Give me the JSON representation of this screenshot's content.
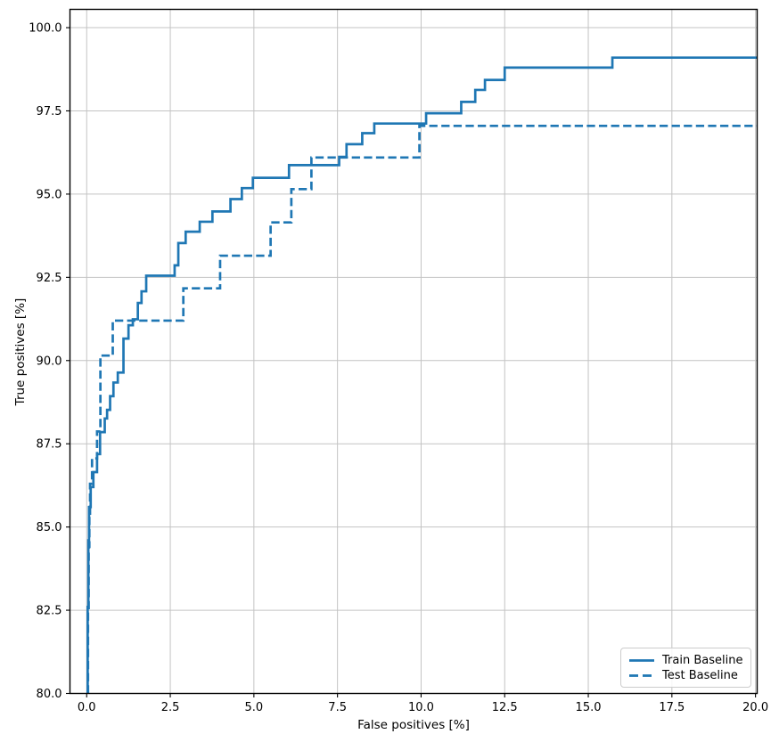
{
  "figure": {
    "background": "#ffffff",
    "line_color": "#1f77b4",
    "grid_color": "#c3c3c3",
    "spine_color": "#000000",
    "text_color": "#000000"
  },
  "chart_data": {
    "type": "line",
    "subtype": "roc-step-curve",
    "title": "",
    "xlabel": "False positives [%]",
    "ylabel": "True positives [%]",
    "xlim": [
      -0.5,
      20.05
    ],
    "ylim": [
      80,
      100.55
    ],
    "grid": true,
    "legend_position": "lower right",
    "x_tick_values": [
      0,
      2.5,
      5,
      7.5,
      10,
      12.5,
      15,
      17.5,
      20
    ],
    "x_tick_labels": [
      "0.0",
      "2.5",
      "5.0",
      "7.5",
      "10.0",
      "12.5",
      "15.0",
      "17.5",
      "20.0"
    ],
    "y_tick_values": [
      80,
      82.5,
      85,
      87.5,
      90,
      92.5,
      95,
      97.5,
      100
    ],
    "y_tick_labels": [
      "80.0",
      "82.5",
      "85.0",
      "87.5",
      "90.0",
      "92.5",
      "95.0",
      "97.5",
      "100.0"
    ],
    "series": [
      {
        "name": "Train Baseline",
        "style": "solid",
        "color": "#1f77b4",
        "linewidth": 2.7,
        "drawstyle": "steps",
        "points": [
          [
            0.03,
            80
          ],
          [
            0.03,
            82.6
          ],
          [
            0.05,
            82.6
          ],
          [
            0.05,
            84.6
          ],
          [
            0.07,
            84.6
          ],
          [
            0.07,
            85.6
          ],
          [
            0.12,
            85.6
          ],
          [
            0.12,
            86.2
          ],
          [
            0.2,
            86.2
          ],
          [
            0.2,
            86.65
          ],
          [
            0.31,
            86.65
          ],
          [
            0.31,
            87.19
          ],
          [
            0.4,
            87.19
          ],
          [
            0.4,
            87.85
          ],
          [
            0.54,
            87.85
          ],
          [
            0.54,
            88.26
          ],
          [
            0.61,
            88.26
          ],
          [
            0.61,
            88.52
          ],
          [
            0.7,
            88.52
          ],
          [
            0.7,
            88.93
          ],
          [
            0.8,
            88.93
          ],
          [
            0.8,
            89.34
          ],
          [
            0.93,
            89.34
          ],
          [
            0.93,
            89.64
          ],
          [
            1.1,
            89.64
          ],
          [
            1.1,
            90.66
          ],
          [
            1.25,
            90.66
          ],
          [
            1.25,
            91.06
          ],
          [
            1.38,
            91.06
          ],
          [
            1.38,
            91.24
          ],
          [
            1.53,
            91.24
          ],
          [
            1.53,
            91.73
          ],
          [
            1.64,
            91.73
          ],
          [
            1.64,
            92.08
          ],
          [
            1.78,
            92.08
          ],
          [
            1.78,
            92.55
          ],
          [
            2.63,
            92.55
          ],
          [
            2.63,
            92.86
          ],
          [
            2.74,
            92.86
          ],
          [
            2.74,
            93.53
          ],
          [
            2.96,
            93.53
          ],
          [
            2.96,
            93.87
          ],
          [
            3.38,
            93.87
          ],
          [
            3.38,
            94.17
          ],
          [
            3.76,
            94.17
          ],
          [
            3.76,
            94.48
          ],
          [
            4.3,
            94.48
          ],
          [
            4.3,
            94.85
          ],
          [
            4.64,
            94.85
          ],
          [
            4.64,
            95.18
          ],
          [
            4.97,
            95.18
          ],
          [
            4.97,
            95.49
          ],
          [
            6.05,
            95.49
          ],
          [
            6.05,
            95.87
          ],
          [
            7.55,
            95.87
          ],
          [
            7.55,
            96.12
          ],
          [
            7.77,
            96.12
          ],
          [
            7.77,
            96.5
          ],
          [
            8.24,
            96.5
          ],
          [
            8.24,
            96.83
          ],
          [
            8.6,
            96.83
          ],
          [
            8.6,
            97.12
          ],
          [
            10.15,
            97.12
          ],
          [
            10.15,
            97.43
          ],
          [
            11.2,
            97.43
          ],
          [
            11.2,
            97.77
          ],
          [
            11.62,
            97.77
          ],
          [
            11.62,
            98.13
          ],
          [
            11.91,
            98.13
          ],
          [
            11.91,
            98.43
          ],
          [
            12.5,
            98.43
          ],
          [
            12.5,
            98.8
          ],
          [
            15.72,
            98.8
          ],
          [
            15.72,
            99.1
          ],
          [
            20.05,
            99.1
          ]
        ]
      },
      {
        "name": "Test Baseline",
        "style": "dashed",
        "color": "#1f77b4",
        "linewidth": 2.7,
        "drawstyle": "steps",
        "points": [
          [
            0.04,
            80
          ],
          [
            0.04,
            82.5
          ],
          [
            0.06,
            82.5
          ],
          [
            0.06,
            84.4
          ],
          [
            0.08,
            84.4
          ],
          [
            0.08,
            85.4
          ],
          [
            0.1,
            85.4
          ],
          [
            0.1,
            86.3
          ],
          [
            0.16,
            86.3
          ],
          [
            0.16,
            87.06
          ],
          [
            0.31,
            87.06
          ],
          [
            0.31,
            87.87
          ],
          [
            0.41,
            87.87
          ],
          [
            0.41,
            90.15
          ],
          [
            0.78,
            90.15
          ],
          [
            0.78,
            91.2
          ],
          [
            2.89,
            91.2
          ],
          [
            2.89,
            92.17
          ],
          [
            3.99,
            92.17
          ],
          [
            3.99,
            93.15
          ],
          [
            5.5,
            93.15
          ],
          [
            5.5,
            94.15
          ],
          [
            6.12,
            94.15
          ],
          [
            6.12,
            95.15
          ],
          [
            6.72,
            95.15
          ],
          [
            6.72,
            96.1
          ],
          [
            9.95,
            96.1
          ],
          [
            9.95,
            97.05
          ],
          [
            20.05,
            97.05
          ]
        ]
      }
    ]
  },
  "legend": {
    "items": [
      {
        "label": "Train Baseline",
        "style": "solid"
      },
      {
        "label": "Test Baseline",
        "style": "dashed"
      }
    ]
  }
}
